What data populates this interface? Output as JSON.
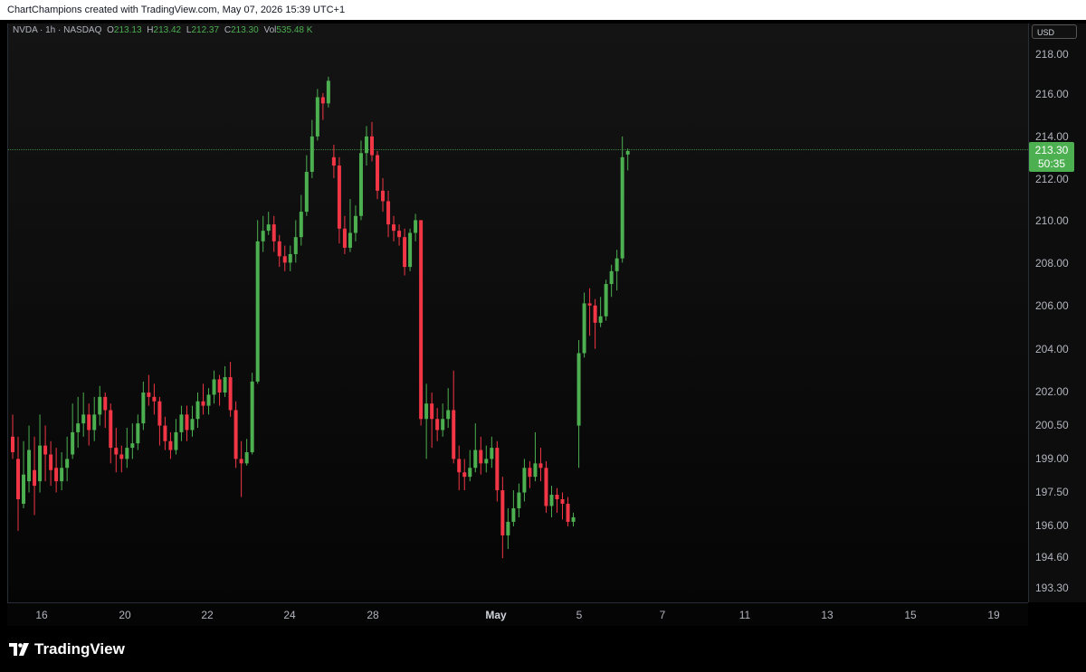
{
  "header": {
    "credit": "ChartChampions created with TradingView.com, May 07, 2026 15:39 UTC+1"
  },
  "legend": {
    "symbol": "NVDA · 1h · NASDAQ",
    "open_label": "O",
    "open": "213.13",
    "high_label": "H",
    "high": "213.42",
    "low_label": "L",
    "low": "212.37",
    "close_label": "C",
    "close": "213.30",
    "vol_label": "Vol",
    "volume": "535.48 K"
  },
  "price_axis": {
    "currency": "USD",
    "ticks": [
      "218.00",
      "216.00",
      "214.00",
      "212.00",
      "210.00",
      "208.00",
      "206.00",
      "204.00",
      "202.00",
      "200.50",
      "199.00",
      "197.50",
      "196.00",
      "194.60",
      "193.30"
    ],
    "last_price": "213.30",
    "countdown": "50:35"
  },
  "time_axis": {
    "ticks": [
      "16",
      "20",
      "22",
      "24",
      "28",
      "May",
      "5",
      "7",
      "11",
      "13",
      "15",
      "19"
    ]
  },
  "footer": {
    "brand": "TradingView"
  },
  "colors": {
    "up": "#4caf50",
    "down": "#f23645",
    "background": "#000000"
  },
  "chart_data": {
    "type": "candlestick",
    "series": [
      {
        "name": "NVDA",
        "ohlc": [
          [
            200.0,
            199.3,
            201.0,
            199.0
          ],
          [
            199.0,
            197.2,
            200.0,
            195.8
          ],
          [
            197.0,
            198.3,
            199.8,
            196.8
          ],
          [
            198.0,
            199.4,
            200.5,
            197.5
          ],
          [
            198.5,
            197.8,
            200.0,
            196.5
          ],
          [
            198.0,
            199.6,
            201.0,
            197.5
          ],
          [
            199.6,
            199.2,
            200.5,
            198.0
          ],
          [
            199.2,
            198.5,
            199.8,
            197.8
          ],
          [
            198.6,
            198.0,
            199.5,
            197.5
          ],
          [
            198.0,
            198.6,
            199.3,
            197.6
          ],
          [
            198.6,
            199.0,
            200.0,
            198.0
          ],
          [
            199.2,
            200.2,
            201.5,
            199.0
          ],
          [
            200.2,
            200.6,
            201.8,
            199.5
          ],
          [
            200.6,
            201.0,
            202.0,
            200.0
          ],
          [
            201.0,
            200.3,
            201.5,
            199.6
          ],
          [
            200.3,
            201.0,
            201.8,
            199.8
          ],
          [
            201.0,
            201.8,
            202.3,
            200.5
          ],
          [
            201.8,
            201.2,
            202.0,
            200.4
          ],
          [
            201.2,
            199.5,
            201.5,
            198.8
          ],
          [
            199.5,
            199.2,
            200.4,
            198.4
          ],
          [
            199.2,
            199.0,
            199.6,
            198.4
          ],
          [
            199.0,
            199.5,
            200.4,
            198.6
          ],
          [
            199.5,
            199.7,
            200.6,
            199.0
          ],
          [
            199.7,
            200.6,
            201.0,
            199.4
          ],
          [
            200.6,
            202.0,
            202.5,
            200.3
          ],
          [
            202.0,
            201.8,
            202.8,
            201.4
          ],
          [
            201.8,
            201.6,
            202.4,
            201.0
          ],
          [
            201.6,
            200.5,
            201.8,
            199.6
          ],
          [
            200.5,
            199.8,
            200.9,
            199.4
          ],
          [
            199.8,
            199.4,
            200.2,
            199.0
          ],
          [
            199.4,
            200.2,
            200.8,
            199.2
          ],
          [
            200.2,
            201.0,
            201.4,
            199.8
          ],
          [
            201.0,
            200.3,
            201.4,
            199.8
          ],
          [
            200.3,
            200.8,
            201.4,
            200.0
          ],
          [
            200.8,
            201.6,
            202.0,
            200.4
          ],
          [
            201.6,
            201.4,
            202.4,
            201.0
          ],
          [
            201.4,
            201.9,
            202.2,
            201.0
          ],
          [
            201.9,
            202.6,
            203.0,
            201.5
          ],
          [
            202.6,
            202.0,
            202.8,
            201.4
          ],
          [
            202.0,
            202.7,
            203.2,
            201.8
          ],
          [
            202.7,
            201.2,
            203.4,
            200.9
          ],
          [
            201.2,
            199.0,
            201.6,
            198.6
          ],
          [
            199.0,
            198.8,
            199.8,
            197.3
          ],
          [
            198.8,
            199.3,
            199.9,
            198.7
          ],
          [
            199.3,
            202.5,
            202.9,
            199.2
          ],
          [
            202.5,
            209.0,
            210.0,
            202.4
          ],
          [
            209.0,
            209.5,
            210.2,
            208.5
          ],
          [
            209.5,
            209.8,
            210.4,
            209.3
          ],
          [
            209.8,
            209.0,
            210.2,
            208.5
          ],
          [
            209.0,
            208.3,
            209.3,
            207.8
          ],
          [
            208.3,
            208.0,
            208.8,
            207.6
          ],
          [
            208.0,
            208.4,
            208.8,
            207.6
          ],
          [
            208.4,
            209.2,
            210.0,
            208.0
          ],
          [
            209.2,
            210.4,
            211.2,
            208.8
          ],
          [
            210.4,
            212.3,
            213.1,
            210.2
          ],
          [
            212.3,
            214.0,
            214.8,
            212.0
          ],
          [
            214.0,
            215.9,
            216.3,
            213.8
          ],
          [
            215.9,
            215.6,
            216.1,
            214.8
          ],
          [
            215.6,
            216.7,
            216.9,
            215.4
          ],
          [
            213.0,
            212.6,
            213.6,
            212.0
          ],
          [
            212.6,
            209.6,
            213.0,
            208.9
          ],
          [
            209.6,
            208.7,
            210.2,
            208.4
          ],
          [
            208.7,
            209.4,
            211.0,
            208.5
          ],
          [
            209.4,
            210.2,
            210.7,
            209.0
          ],
          [
            210.2,
            213.2,
            213.8,
            210.0
          ],
          [
            213.2,
            214.0,
            214.5,
            212.6
          ],
          [
            214.0,
            213.1,
            214.7,
            212.8
          ],
          [
            213.1,
            211.4,
            213.3,
            211.0
          ],
          [
            211.4,
            210.9,
            212.0,
            210.4
          ],
          [
            210.9,
            209.8,
            211.4,
            209.2
          ],
          [
            209.8,
            209.5,
            210.2,
            209.0
          ],
          [
            209.5,
            209.2,
            209.8,
            208.8
          ],
          [
            209.2,
            207.8,
            209.6,
            207.4
          ],
          [
            207.8,
            209.4,
            209.6,
            207.6
          ],
          [
            209.4,
            210.0,
            210.3,
            209.0
          ],
          [
            210.0,
            200.8,
            210.0,
            200.5
          ],
          [
            200.8,
            201.5,
            202.4,
            199.0
          ],
          [
            201.5,
            200.8,
            202.0,
            199.5
          ],
          [
            200.8,
            200.3,
            201.3,
            199.8
          ],
          [
            200.3,
            200.8,
            201.5,
            200.0
          ],
          [
            200.8,
            201.2,
            202.2,
            200.4
          ],
          [
            201.2,
            199.0,
            203.0,
            198.8
          ],
          [
            199.0,
            198.4,
            199.6,
            197.6
          ],
          [
            198.4,
            198.2,
            199.0,
            197.6
          ],
          [
            198.2,
            198.6,
            199.4,
            198.0
          ],
          [
            198.6,
            199.4,
            200.6,
            198.4
          ],
          [
            199.4,
            198.8,
            200.0,
            198.3
          ],
          [
            198.8,
            199.0,
            199.6,
            198.4
          ],
          [
            199.0,
            199.5,
            200.0,
            198.6
          ],
          [
            199.5,
            197.6,
            199.8,
            197.1
          ],
          [
            197.6,
            195.6,
            198.2,
            194.6
          ],
          [
            195.6,
            196.2,
            196.8,
            195.0
          ],
          [
            196.2,
            196.8,
            197.6,
            196.0
          ],
          [
            196.8,
            197.5,
            197.9,
            196.4
          ],
          [
            197.5,
            198.6,
            199.0,
            197.1
          ],
          [
            198.6,
            198.2,
            198.9,
            197.7
          ],
          [
            198.2,
            198.8,
            200.2,
            198.0
          ],
          [
            198.8,
            198.6,
            199.5,
            198.0
          ],
          [
            198.6,
            196.9,
            198.9,
            196.6
          ],
          [
            196.9,
            197.4,
            197.8,
            196.4
          ],
          [
            197.4,
            197.2,
            197.7,
            196.6
          ],
          [
            197.2,
            197.0,
            197.5,
            196.3
          ],
          [
            197.0,
            196.2,
            197.3,
            196.0
          ],
          [
            196.2,
            196.4,
            196.6,
            196.0
          ],
          [
            200.5,
            203.8,
            204.4,
            198.6
          ],
          [
            203.8,
            206.1,
            206.6,
            203.6
          ],
          [
            206.1,
            206.0,
            206.8,
            204.6
          ],
          [
            206.0,
            205.2,
            206.3,
            204.0
          ],
          [
            205.2,
            205.5,
            206.4,
            205.0
          ],
          [
            205.5,
            207.0,
            207.2,
            205.3
          ],
          [
            207.0,
            207.6,
            207.9,
            206.4
          ],
          [
            207.6,
            208.2,
            208.6,
            206.7
          ],
          [
            208.2,
            213.0,
            214.0,
            208.0
          ],
          [
            213.13,
            213.3,
            213.42,
            212.37
          ]
        ]
      }
    ],
    "ylim": [
      192.8,
      218.8
    ],
    "scale": "log",
    "x_ticks": [
      "16",
      "20",
      "22",
      "24",
      "28",
      "May",
      "5",
      "7",
      "11",
      "13",
      "15",
      "19"
    ],
    "grid": false
  }
}
